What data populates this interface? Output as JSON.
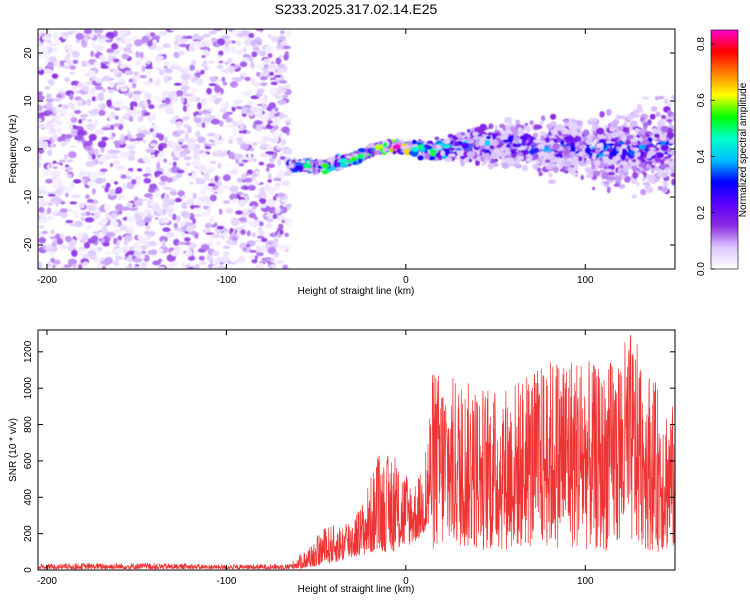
{
  "title": "S233.2025.317.02.14.E25",
  "chart_data": [
    {
      "type": "heatmap",
      "xlabel": "Height of straight line (km)",
      "ylabel": "Frequency (Hz)",
      "xlim": [
        -205,
        150
      ],
      "ylim": [
        -25,
        25
      ],
      "x_ticks": [
        -200,
        -100,
        0,
        100
      ],
      "y_ticks": [
        -20,
        -10,
        0,
        10,
        20
      ],
      "noise_region_x": [
        -205,
        -65
      ],
      "signal_ridge": {
        "x": [
          -65,
          -55,
          -45,
          -35,
          -25,
          -15,
          -5,
          5,
          15,
          25,
          35,
          50,
          65,
          80,
          95,
          110,
          125,
          140,
          150
        ],
        "freq": [
          -3.5,
          -3.5,
          -3.5,
          -2.5,
          -1.5,
          0.5,
          0.5,
          0.0,
          -0.5,
          0.0,
          1.0,
          1.0,
          1.0,
          0.5,
          0.5,
          -0.5,
          0.0,
          0.5,
          1.0
        ],
        "peak_amplitude": [
          0.3,
          0.5,
          0.55,
          0.45,
          0.5,
          0.6,
          0.85,
          0.45,
          0.5,
          0.4,
          0.35,
          0.3,
          0.3,
          0.35,
          0.3,
          0.35,
          0.3,
          0.3,
          0.3
        ]
      },
      "colorbar": {
        "label": "Normalized spectral amplitude",
        "range": [
          0.0,
          0.85
        ],
        "ticks": [
          0.0,
          0.2,
          0.4,
          0.6,
          0.8
        ],
        "colors": [
          "#ffffff",
          "#dcc6ff",
          "#8a2be2",
          "#5a00ff",
          "#0000ff",
          "#00bfff",
          "#00ffcc",
          "#00ff00",
          "#ffff00",
          "#ff8000",
          "#ff0000",
          "#ff00cc"
        ]
      }
    },
    {
      "type": "line",
      "xlabel": "Height of straight line (km)",
      "ylabel": "SNR (10 * v/v)",
      "xlim": [
        -205,
        150
      ],
      "ylim": [
        0,
        1320
      ],
      "x_ticks": [
        -200,
        -100,
        0,
        100
      ],
      "y_ticks": [
        0,
        200,
        400,
        600,
        800,
        1000,
        1200
      ],
      "color": "#ee3333",
      "envelope": {
        "x": [
          -205,
          -150,
          -100,
          -65,
          -55,
          -45,
          -35,
          -25,
          -15,
          -5,
          5,
          10,
          15,
          30,
          50,
          70,
          90,
          110,
          125,
          140,
          150
        ],
        "y_max": [
          35,
          40,
          30,
          35,
          120,
          240,
          260,
          360,
          650,
          620,
          500,
          560,
          1120,
          1050,
          1000,
          1100,
          1230,
          1100,
          1320,
          1020,
          900
        ],
        "y_min": [
          5,
          5,
          5,
          5,
          10,
          30,
          50,
          80,
          100,
          100,
          150,
          200,
          100,
          120,
          100,
          120,
          120,
          100,
          130,
          100,
          100
        ]
      }
    }
  ]
}
